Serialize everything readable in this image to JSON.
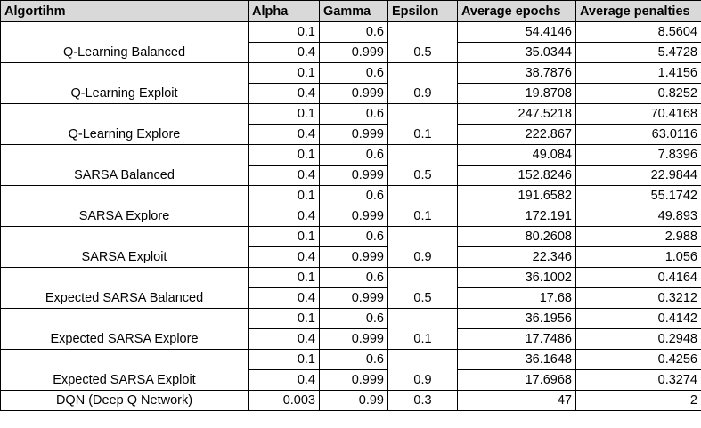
{
  "table": {
    "headers": [
      "Algortihm",
      "Alpha",
      "Gamma",
      "Epsilon",
      "Average epochs",
      "Average penalties"
    ],
    "groups": [
      {
        "name": "Q-Learning Balanced",
        "epsilon": "0.5",
        "rows": [
          [
            "0.1",
            "0.6",
            "54.4146",
            "8.5604"
          ],
          [
            "0.4",
            "0.999",
            "35.0344",
            "5.4728"
          ]
        ]
      },
      {
        "name": "Q-Learning Exploit",
        "epsilon": "0.9",
        "rows": [
          [
            "0.1",
            "0.6",
            "38.7876",
            "1.4156"
          ],
          [
            "0.4",
            "0.999",
            "19.8708",
            "0.8252"
          ]
        ]
      },
      {
        "name": "Q-Learning Explore",
        "epsilon": "0.1",
        "rows": [
          [
            "0.1",
            "0.6",
            "247.5218",
            "70.4168"
          ],
          [
            "0.4",
            "0.999",
            "222.867",
            "63.0116"
          ]
        ]
      },
      {
        "name": "SARSA Balanced",
        "epsilon": "0.5",
        "rows": [
          [
            "0.1",
            "0.6",
            "49.084",
            "7.8396"
          ],
          [
            "0.4",
            "0.999",
            "152.8246",
            "22.9844"
          ]
        ]
      },
      {
        "name": "SARSA Explore",
        "epsilon": "0.1",
        "rows": [
          [
            "0.1",
            "0.6",
            "191.6582",
            "55.1742"
          ],
          [
            "0.4",
            "0.999",
            "172.191",
            "49.893"
          ]
        ]
      },
      {
        "name": "SARSA Exploit",
        "epsilon": "0.9",
        "rows": [
          [
            "0.1",
            "0.6",
            "80.2608",
            "2.988"
          ],
          [
            "0.4",
            "0.999",
            "22.346",
            "1.056"
          ]
        ]
      },
      {
        "name": "Expected SARSA Balanced",
        "epsilon": "0.5",
        "rows": [
          [
            "0.1",
            "0.6",
            "36.1002",
            "0.4164"
          ],
          [
            "0.4",
            "0.999",
            "17.68",
            "0.3212"
          ]
        ]
      },
      {
        "name": "Expected SARSA Explore",
        "epsilon": "0.1",
        "rows": [
          [
            "0.1",
            "0.6",
            "36.1956",
            "0.4142"
          ],
          [
            "0.4",
            "0.999",
            "17.7486",
            "0.2948"
          ]
        ]
      },
      {
        "name": "Expected SARSA Exploit",
        "epsilon": "0.9",
        "rows": [
          [
            "0.1",
            "0.6",
            "36.1648",
            "0.4256"
          ],
          [
            "0.4",
            "0.999",
            "17.6968",
            "0.3274"
          ]
        ]
      }
    ],
    "last_row": {
      "name": "DQN (Deep Q Network)",
      "alpha": "0.003",
      "gamma": "0.99",
      "epsilon": "0.3",
      "epochs": "47",
      "penalties": "2"
    }
  }
}
